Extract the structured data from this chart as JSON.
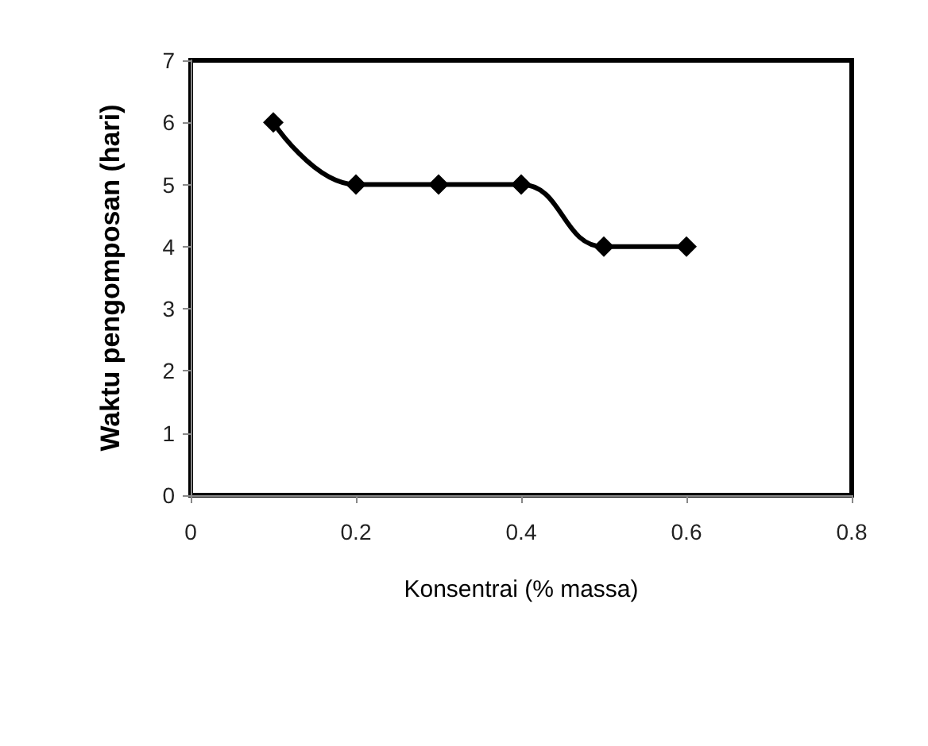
{
  "chart_data": {
    "type": "line",
    "xlabel": "Konsentrai (% massa)",
    "ylabel": "Waktu pengomposan (hari)",
    "x": [
      0.1,
      0.2,
      0.3,
      0.4,
      0.5,
      0.6
    ],
    "series": [
      {
        "color": "#000000",
        "values": [
          6,
          5,
          5,
          5,
          4,
          4
        ]
      }
    ],
    "xlim": [
      0,
      0.8
    ],
    "xticks": [
      0,
      0.2,
      0.4,
      0.6,
      0.8
    ],
    "ylim": [
      0,
      7
    ],
    "yticks": [
      0,
      1,
      2,
      3,
      4,
      5,
      6,
      7
    ],
    "grid": false,
    "marker": "diamond",
    "line_style": "solid"
  }
}
